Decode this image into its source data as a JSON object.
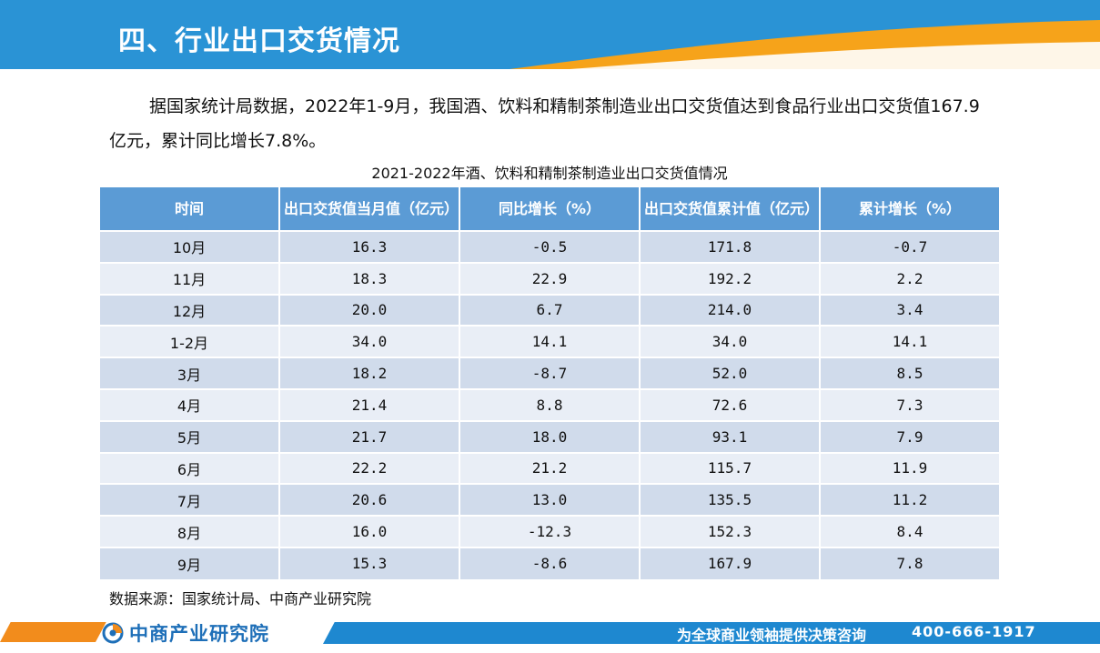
{
  "header": {
    "title": "四、行业出口交货情况"
  },
  "paragraph": {
    "text": "据国家统计局数据，2022年1-9月，我国酒、饮料和精制茶制造业出口交货值达到食品行业出口交货值167.9亿元，累计同比增长7.8%。"
  },
  "table": {
    "title": "2021-2022年酒、饮料和精制茶制造业出口交货值情况",
    "headers": [
      "时间",
      "出口交货值当月值（亿元）",
      "同比增长（%）",
      "出口交货值累计值（亿元）",
      "累计增长（%）"
    ],
    "rows": [
      [
        "10月",
        "16.3",
        "-0.5",
        "171.8",
        "-0.7"
      ],
      [
        "11月",
        "18.3",
        "22.9",
        "192.2",
        "2.2"
      ],
      [
        "12月",
        "20.0",
        "6.7",
        "214.0",
        "3.4"
      ],
      [
        "1-2月",
        "34.0",
        "14.1",
        "34.0",
        "14.1"
      ],
      [
        "3月",
        "18.2",
        "-8.7",
        "52.0",
        "8.5"
      ],
      [
        "4月",
        "21.4",
        "8.8",
        "72.6",
        "7.3"
      ],
      [
        "5月",
        "21.7",
        "18.0",
        "93.1",
        "7.9"
      ],
      [
        "6月",
        "22.2",
        "21.2",
        "115.7",
        "11.9"
      ],
      [
        "7月",
        "20.6",
        "13.0",
        "135.5",
        "11.2"
      ],
      [
        "8月",
        "16.0",
        "-12.3",
        "152.3",
        "8.4"
      ],
      [
        "9月",
        "15.3",
        "-8.6",
        "167.9",
        "7.8"
      ]
    ]
  },
  "source": "数据来源：国家统计局、中商产业研究院",
  "footer": {
    "logo_name": "中商产业研究院",
    "slogan": "为全球商业领袖提供决策咨询",
    "phone": "400-666-1917"
  },
  "colors": {
    "header_blue": "#2a93d5",
    "accent_orange": "#f28c1c",
    "table_header": "#5b9bd5",
    "row_dark": "#d0dbeb",
    "row_light": "#e9eef6"
  }
}
